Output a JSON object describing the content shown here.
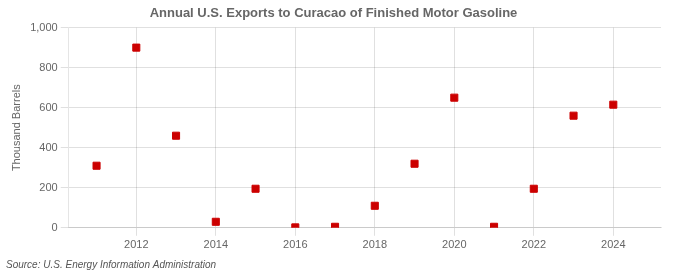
{
  "chart_data": {
    "type": "scatter",
    "title": "Annual U.S. Exports to Curacao of Finished Motor Gasoline",
    "ylabel": "Thousand Barrels",
    "source": "Source: U.S. Energy Information Administration",
    "x": [
      2011,
      2012,
      2013,
      2014,
      2015,
      2016,
      2017,
      2018,
      2019,
      2020,
      2021,
      2022,
      2023,
      2024
    ],
    "values": [
      310,
      900,
      460,
      30,
      195,
      2,
      5,
      110,
      320,
      650,
      5,
      195,
      560,
      615
    ],
    "color": "#cc0000",
    "marker": "square",
    "xlim": [
      2010.3,
      2025.2
    ],
    "xticks": [
      2012,
      2014,
      2016,
      2018,
      2020,
      2022,
      2024
    ],
    "ylim": [
      0,
      1000
    ],
    "yticks": [
      0,
      200,
      400,
      600,
      800,
      {
        "value": 1000,
        "label": "1,000"
      }
    ],
    "grid": true
  }
}
